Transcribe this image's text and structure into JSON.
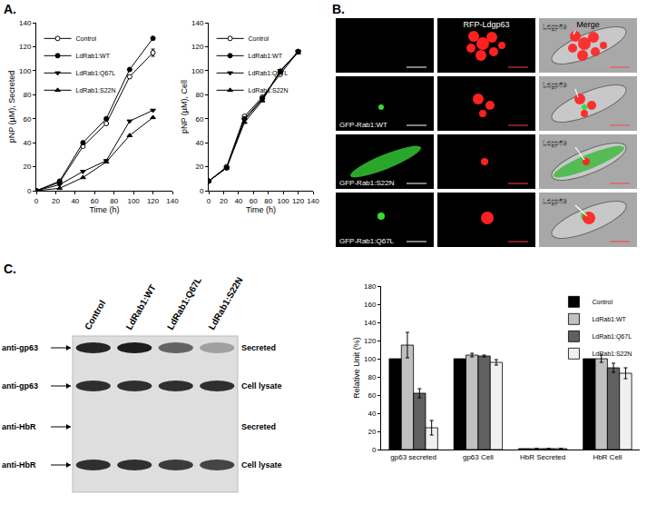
{
  "chart_data": [
    {
      "type": "line",
      "xlabel": "Time (h)",
      "ylabel": "pNP (µM), Secreted",
      "x": [
        0,
        24,
        48,
        72,
        96,
        120
      ],
      "xlim": [
        0,
        140
      ],
      "xticks": [
        0,
        20,
        40,
        60,
        80,
        100,
        120,
        140
      ],
      "ylim": [
        0,
        140
      ],
      "yticks": [
        0,
        20,
        40,
        60,
        80,
        100,
        120,
        140
      ],
      "legend": "upper left",
      "series": [
        {
          "name": "Control",
          "color": "#000000",
          "marker": "open-circle",
          "values": [
            0,
            7,
            37,
            56,
            95,
            115
          ],
          "errors": [
            null,
            null,
            null,
            null,
            null,
            3
          ]
        },
        {
          "name": "LdRab1:WT",
          "color": "#000000",
          "marker": "circle",
          "values": [
            0,
            8,
            40,
            60,
            101,
            127
          ]
        },
        {
          "name": "LdRab1:Q67L",
          "color": "#000000",
          "marker": "triangle-down",
          "values": [
            0,
            5,
            16,
            25,
            58,
            67
          ]
        },
        {
          "name": "LdRab1:S22N",
          "color": "#000000",
          "marker": "triangle-up",
          "values": [
            0,
            2,
            11,
            24,
            46,
            61
          ]
        }
      ]
    },
    {
      "type": "line",
      "xlabel": "Time (h)",
      "ylabel": "pNP (µM), Cell",
      "x": [
        0,
        24,
        48,
        72,
        96,
        120
      ],
      "xlim": [
        0,
        140
      ],
      "xticks": [
        0,
        20,
        40,
        60,
        80,
        100,
        120,
        140
      ],
      "ylim": [
        0,
        140
      ],
      "yticks": [
        0,
        20,
        40,
        60,
        80,
        100,
        120,
        140
      ],
      "legend": "upper left",
      "series": [
        {
          "name": "Control",
          "color": "#000000",
          "marker": "open-circle",
          "values": [
            8,
            20,
            62,
            78,
            97,
            116
          ]
        },
        {
          "name": "LdRab1:WT",
          "color": "#000000",
          "marker": "circle",
          "values": [
            8,
            19,
            60,
            77,
            99,
            116
          ]
        },
        {
          "name": "LdRab1:Q67L",
          "color": "#000000",
          "marker": "triangle-down",
          "values": [
            8,
            19,
            59,
            76,
            100,
            116
          ]
        },
        {
          "name": "LdRab1:S22N",
          "color": "#000000",
          "marker": "triangle-up",
          "values": [
            8,
            19,
            57,
            75,
            100,
            115
          ]
        }
      ]
    },
    {
      "type": "bar",
      "ylabel": "Relative Unit (%)",
      "categories": [
        "gp63 secreted",
        "gp63 Cell",
        "HbR Secreted",
        "HbR Cell"
      ],
      "ylim": [
        0,
        180
      ],
      "yticks": [
        0,
        20,
        40,
        60,
        80,
        100,
        120,
        140,
        160,
        180
      ],
      "legend": "upper right",
      "series": [
        {
          "name": "Control",
          "color": "#000000",
          "values": [
            100,
            100,
            1,
            100
          ]
        },
        {
          "name": "LdRab1:WT",
          "color": "#c0c0c0",
          "values": [
            115,
            104,
            1,
            100
          ],
          "errors": [
            14,
            2,
            null,
            4
          ]
        },
        {
          "name": "LdRab1:Q67L",
          "color": "#606060",
          "values": [
            62,
            103,
            1,
            90
          ],
          "errors": [
            5,
            1,
            null,
            5
          ]
        },
        {
          "name": "LdRab1:S22N",
          "color": "#f0f0f0",
          "values": [
            24,
            96,
            1,
            84
          ],
          "errors": [
            8,
            3,
            null,
            6
          ]
        }
      ]
    }
  ],
  "figure": {
    "panel_labels": [
      "A.",
      "B.",
      "C."
    ],
    "microscopy": {
      "column_labels": [
        null,
        "RFP-Ldgp63",
        "Merge"
      ],
      "row_labels": [
        null,
        "GFP-Rab1:WT",
        "GFP-Rab1:S22N",
        "GFP-Rab1:Q67L"
      ],
      "arrow_labels": [
        "Ldgp63",
        "Ldgp63",
        "Ldgp63",
        "Ldgp63"
      ]
    },
    "blot": {
      "lanes": [
        "Control",
        "LdRab1:WT",
        "LdRab1:Q67L",
        "LdRab1:S22N"
      ],
      "rows": [
        {
          "antibody": "anti-gp63",
          "fraction": "Secreted",
          "bands": [
            0.9,
            0.95,
            0.6,
            0.3
          ]
        },
        {
          "antibody": "anti-gp63",
          "fraction": "Cell lysate",
          "bands": [
            0.85,
            0.85,
            0.85,
            0.85
          ]
        },
        {
          "antibody": "anti-HbR",
          "fraction": "Secreted",
          "bands": [
            0,
            0,
            0,
            0
          ]
        },
        {
          "antibody": "anti-HbR",
          "fraction": "Cell lysate",
          "bands": [
            0.85,
            0.85,
            0.8,
            0.75
          ]
        }
      ]
    }
  }
}
